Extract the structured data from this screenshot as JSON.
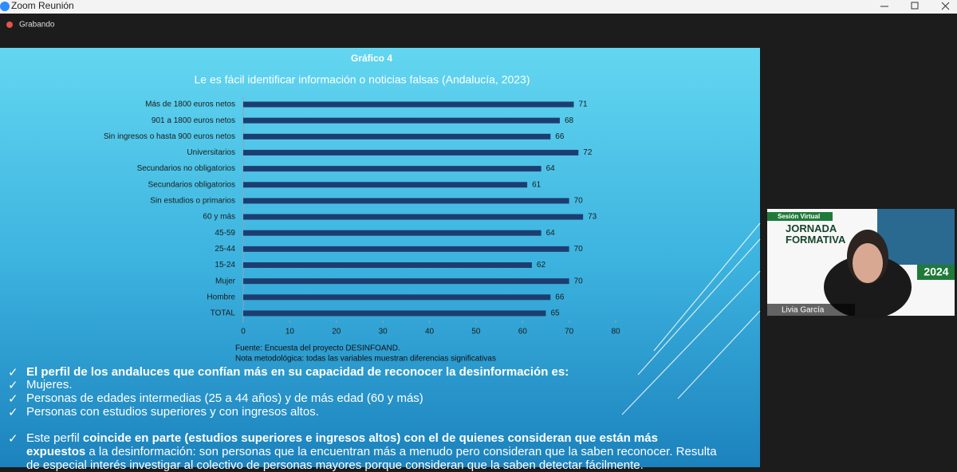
{
  "window": {
    "title": "Zoom Reunión",
    "recording": "Grabando"
  },
  "chart_data": {
    "type": "bar",
    "orientation": "horizontal",
    "title": "Gráfico 4",
    "subtitle": "Le es fácil identificar información o noticias falsas (Andalucía, 2023)",
    "categories": [
      "Más de 1800 euros netos",
      "901 a 1800 euros netos",
      "Sin ingresos o hasta 900 euros netos",
      "Universitarios",
      "Secundarios no obligatorios",
      "Secundarios obligatorios",
      "Sin estudios o primarios",
      "60 y más",
      "45-59",
      "25-44",
      "15-24",
      "Mujer",
      "Hombre",
      "TOTAL"
    ],
    "values": [
      71,
      68,
      66,
      72,
      64,
      61,
      70,
      73,
      64,
      70,
      62,
      70,
      66,
      65
    ],
    "color": "#1d3d70",
    "xlim": [
      0,
      80
    ],
    "xticks": [
      0,
      10,
      20,
      30,
      40,
      50,
      60,
      70,
      80
    ],
    "source": "Fuente: Encuesta del proyecto DESINFOAND.",
    "note": "Nota metodológica: todas las variables muestran diferencias significativas"
  },
  "slide": {
    "bullets": [
      {
        "text": "El perfil de los andaluces que confían más en su capacidad de reconocer la desinformación es:",
        "bold": true
      },
      {
        "text": "Mujeres.",
        "bold": false
      },
      {
        "text": "Personas de edades intermedias (25 a 44 años) y de más edad (60 y más)",
        "bold": false
      },
      {
        "text": "Personas con estudios superiores y con ingresos altos.",
        "bold": false
      }
    ],
    "paragraph": [
      {
        "text": "Este perfil ",
        "bold": false
      },
      {
        "text": "coincide en parte (estudios superiores e ingresos altos) con el de quienes consideran que están más expuestos",
        "bold": true
      },
      {
        "text": " a la desinformación: son personas que la encuentran más a menudo pero consideran que la saben reconocer. Resulta de especial interés investigar al colectivo de personas mayores porque consideran que la saben detectar fácilmente.",
        "bold": false
      }
    ]
  },
  "video": {
    "badge": "Sesión Virtual",
    "heading": "JORNADA FORMATIVA",
    "year": "2024",
    "participant": "Livia García"
  }
}
